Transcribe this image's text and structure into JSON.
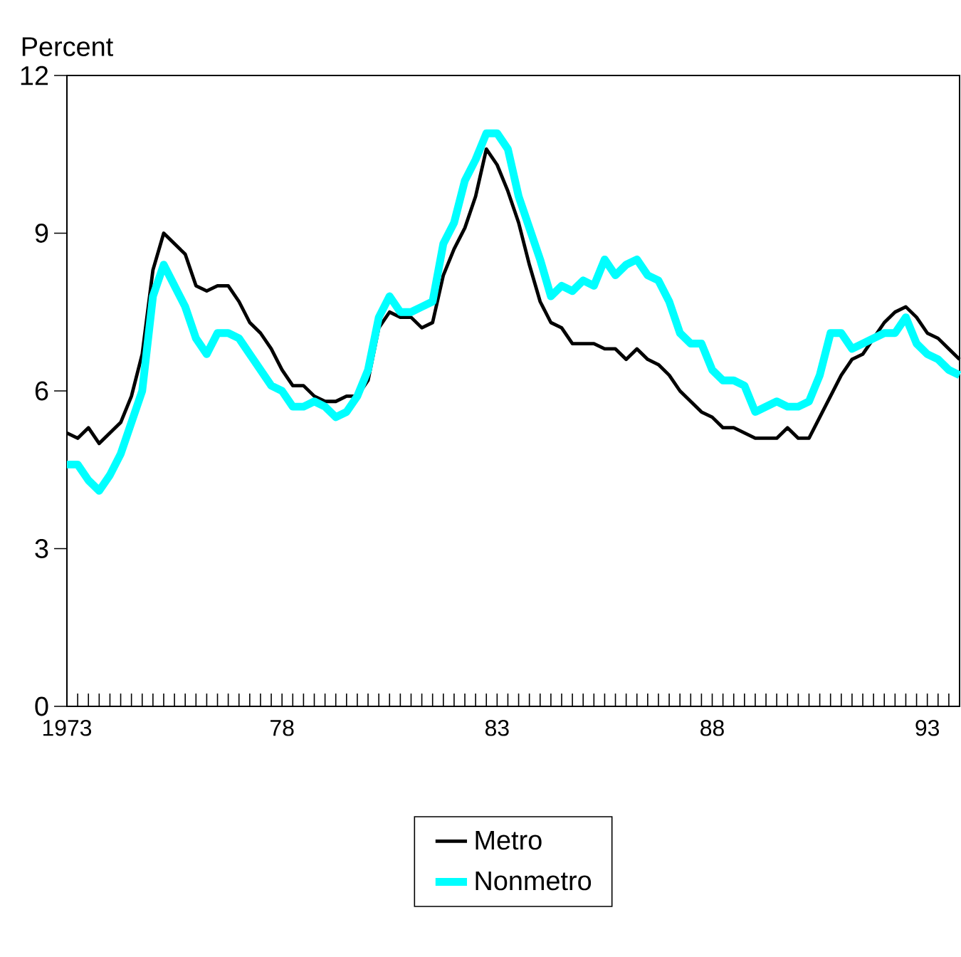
{
  "chart_data": {
    "type": "line",
    "ylabel": "Percent",
    "x": [
      1973.0,
      1973.25,
      1973.5,
      1973.75,
      1974.0,
      1974.25,
      1974.5,
      1974.75,
      1975.0,
      1975.25,
      1975.5,
      1975.75,
      1976.0,
      1976.25,
      1976.5,
      1976.75,
      1977.0,
      1977.25,
      1977.5,
      1977.75,
      1978.0,
      1978.25,
      1978.5,
      1978.75,
      1979.0,
      1979.25,
      1979.5,
      1979.75,
      1980.0,
      1980.25,
      1980.5,
      1980.75,
      1981.0,
      1981.25,
      1981.5,
      1981.75,
      1982.0,
      1982.25,
      1982.5,
      1982.75,
      1983.0,
      1983.25,
      1983.5,
      1983.75,
      1984.0,
      1984.25,
      1984.5,
      1984.75,
      1985.0,
      1985.25,
      1985.5,
      1985.75,
      1986.0,
      1986.25,
      1986.5,
      1986.75,
      1987.0,
      1987.25,
      1987.5,
      1987.75,
      1988.0,
      1988.25,
      1988.5,
      1988.75,
      1989.0,
      1989.25,
      1989.5,
      1989.75,
      1990.0,
      1990.25,
      1990.5,
      1990.75,
      1991.0,
      1991.25,
      1991.5,
      1991.75,
      1992.0,
      1992.25,
      1992.5,
      1992.75,
      1993.0,
      1993.25,
      1993.5,
      1993.75
    ],
    "series": [
      {
        "name": "Metro",
        "color": "#000000",
        "values": [
          5.2,
          5.1,
          5.3,
          5.0,
          5.2,
          5.4,
          5.9,
          6.7,
          8.3,
          9.0,
          8.8,
          8.6,
          8.0,
          7.9,
          8.0,
          8.0,
          7.7,
          7.3,
          7.1,
          6.8,
          6.4,
          6.1,
          6.1,
          5.9,
          5.8,
          5.8,
          5.9,
          5.9,
          6.2,
          7.2,
          7.5,
          7.4,
          7.4,
          7.2,
          7.3,
          8.2,
          8.7,
          9.1,
          9.7,
          10.6,
          10.3,
          9.8,
          9.2,
          8.4,
          7.7,
          7.3,
          7.2,
          6.9,
          6.9,
          6.9,
          6.8,
          6.8,
          6.6,
          6.8,
          6.6,
          6.5,
          6.3,
          6.0,
          5.8,
          5.6,
          5.5,
          5.3,
          5.3,
          5.2,
          5.1,
          5.1,
          5.1,
          5.3,
          5.1,
          5.1,
          5.5,
          5.9,
          6.3,
          6.6,
          6.7,
          7.0,
          7.3,
          7.5,
          7.6,
          7.4,
          7.1,
          7.0,
          6.8,
          6.6
        ]
      },
      {
        "name": "Nonmetro",
        "color": "#00ffff",
        "values": [
          4.6,
          4.6,
          4.3,
          4.1,
          4.4,
          4.8,
          5.4,
          6.0,
          7.8,
          8.4,
          8.0,
          7.6,
          7.0,
          6.7,
          7.1,
          7.1,
          7.0,
          6.7,
          6.4,
          6.1,
          6.0,
          5.7,
          5.7,
          5.8,
          5.7,
          5.5,
          5.6,
          5.9,
          6.4,
          7.4,
          7.8,
          7.5,
          7.5,
          7.6,
          7.7,
          8.8,
          9.2,
          10.0,
          10.4,
          10.9,
          10.9,
          10.6,
          9.7,
          9.1,
          8.5,
          7.8,
          8.0,
          7.9,
          8.1,
          8.0,
          8.5,
          8.2,
          8.4,
          8.5,
          8.2,
          8.1,
          7.7,
          7.1,
          6.9,
          6.9,
          6.4,
          6.2,
          6.2,
          6.1,
          5.6,
          5.7,
          5.8,
          5.7,
          5.7,
          5.8,
          6.3,
          7.1,
          7.1,
          6.8,
          6.9,
          7.0,
          7.1,
          7.1,
          7.4,
          6.9,
          6.7,
          6.6,
          6.4,
          6.3
        ]
      }
    ],
    "xlim": [
      1973,
      1993.75
    ],
    "xticks": [
      {
        "value": 1973,
        "label": "1973"
      },
      {
        "value": 1973.25,
        "label": null
      },
      {
        "value": 1973.5,
        "label": null
      },
      {
        "value": 1973.75,
        "label": null
      },
      {
        "value": 1974,
        "label": null
      },
      {
        "value": 1974.25,
        "label": null
      },
      {
        "value": 1974.5,
        "label": null
      },
      {
        "value": 1974.75,
        "label": null
      },
      {
        "value": 1975,
        "label": null
      },
      {
        "value": 1975.25,
        "label": null
      },
      {
        "value": 1975.5,
        "label": null
      },
      {
        "value": 1975.75,
        "label": null
      },
      {
        "value": 1976,
        "label": null
      },
      {
        "value": 1976.25,
        "label": null
      },
      {
        "value": 1976.5,
        "label": null
      },
      {
        "value": 1976.75,
        "label": null
      },
      {
        "value": 1977,
        "label": null
      },
      {
        "value": 1977.25,
        "label": null
      },
      {
        "value": 1977.5,
        "label": null
      },
      {
        "value": 1977.75,
        "label": null
      },
      {
        "value": 1978,
        "label": "78"
      },
      {
        "value": 1978.25,
        "label": null
      },
      {
        "value": 1978.5,
        "label": null
      },
      {
        "value": 1978.75,
        "label": null
      },
      {
        "value": 1979,
        "label": null
      },
      {
        "value": 1979.25,
        "label": null
      },
      {
        "value": 1979.5,
        "label": null
      },
      {
        "value": 1979.75,
        "label": null
      },
      {
        "value": 1980,
        "label": null
      },
      {
        "value": 1980.25,
        "label": null
      },
      {
        "value": 1980.5,
        "label": null
      },
      {
        "value": 1980.75,
        "label": null
      },
      {
        "value": 1981,
        "label": null
      },
      {
        "value": 1981.25,
        "label": null
      },
      {
        "value": 1981.5,
        "label": null
      },
      {
        "value": 1981.75,
        "label": null
      },
      {
        "value": 1982,
        "label": null
      },
      {
        "value": 1982.25,
        "label": null
      },
      {
        "value": 1982.5,
        "label": null
      },
      {
        "value": 1982.75,
        "label": null
      },
      {
        "value": 1983,
        "label": "83"
      },
      {
        "value": 1983.25,
        "label": null
      },
      {
        "value": 1983.5,
        "label": null
      },
      {
        "value": 1983.75,
        "label": null
      },
      {
        "value": 1984,
        "label": null
      },
      {
        "value": 1984.25,
        "label": null
      },
      {
        "value": 1984.5,
        "label": null
      },
      {
        "value": 1984.75,
        "label": null
      },
      {
        "value": 1985,
        "label": null
      },
      {
        "value": 1985.25,
        "label": null
      },
      {
        "value": 1985.5,
        "label": null
      },
      {
        "value": 1985.75,
        "label": null
      },
      {
        "value": 1986,
        "label": null
      },
      {
        "value": 1986.25,
        "label": null
      },
      {
        "value": 1986.5,
        "label": null
      },
      {
        "value": 1986.75,
        "label": null
      },
      {
        "value": 1987,
        "label": null
      },
      {
        "value": 1987.25,
        "label": null
      },
      {
        "value": 1987.5,
        "label": null
      },
      {
        "value": 1987.75,
        "label": null
      },
      {
        "value": 1988,
        "label": "88"
      },
      {
        "value": 1988.25,
        "label": null
      },
      {
        "value": 1988.5,
        "label": null
      },
      {
        "value": 1988.75,
        "label": null
      },
      {
        "value": 1989,
        "label": null
      },
      {
        "value": 1989.25,
        "label": null
      },
      {
        "value": 1989.5,
        "label": null
      },
      {
        "value": 1989.75,
        "label": null
      },
      {
        "value": 1990,
        "label": null
      },
      {
        "value": 1990.25,
        "label": null
      },
      {
        "value": 1990.5,
        "label": null
      },
      {
        "value": 1990.75,
        "label": null
      },
      {
        "value": 1991,
        "label": null
      },
      {
        "value": 1991.25,
        "label": null
      },
      {
        "value": 1991.5,
        "label": null
      },
      {
        "value": 1991.75,
        "label": null
      },
      {
        "value": 1992,
        "label": null
      },
      {
        "value": 1992.25,
        "label": null
      },
      {
        "value": 1992.5,
        "label": null
      },
      {
        "value": 1992.75,
        "label": null
      },
      {
        "value": 1993,
        "label": "93"
      },
      {
        "value": 1993.25,
        "label": null
      },
      {
        "value": 1993.5,
        "label": null
      },
      {
        "value": 1993.75,
        "label": null
      }
    ],
    "ylim": [
      0,
      12
    ],
    "yticks": [
      0,
      3,
      6,
      9,
      12
    ],
    "grid": false,
    "legend": "bottom",
    "marker": "none",
    "line_style": "solid"
  }
}
